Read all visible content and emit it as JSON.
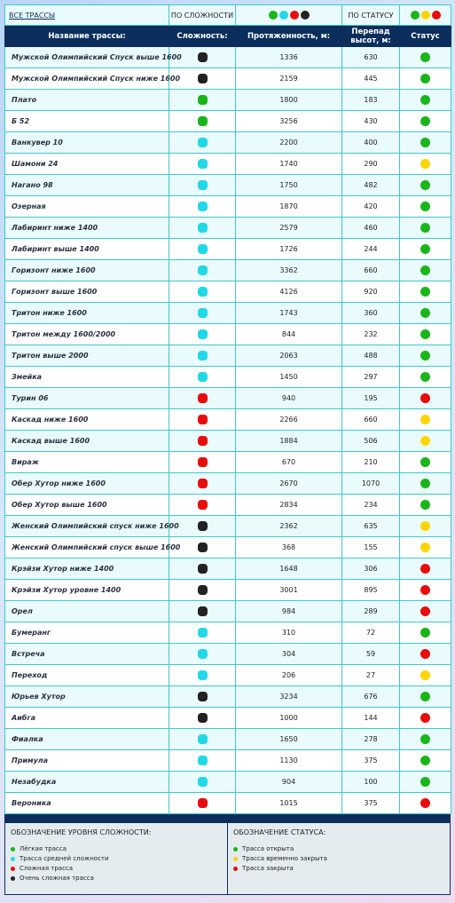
{
  "filters": {
    "all": "ВСЕ ТРАССЫ",
    "by_difficulty": "ПО СЛОЖНОСТИ",
    "by_status": "ПО СТАТУСУ"
  },
  "table": {
    "headers": [
      "Название трассы:",
      "Сложность:",
      "Протяженность, м:",
      "Перепад высот, м:",
      "Статус"
    ],
    "rows": [
      {
        "name": "Мужской Олимпийский Спуск выше 1600",
        "difficulty_color": "#222222",
        "length": 1336,
        "drop": 630,
        "status_color": "#19b519"
      },
      {
        "name": "Мужской Олимпийский Спуск ниже 1600",
        "difficulty_color": "#222222",
        "length": 2159,
        "drop": 445,
        "status_color": "#19b519"
      },
      {
        "name": "Плато",
        "difficulty_color": "#19b519",
        "length": 1800,
        "drop": 183,
        "status_color": "#19b519"
      },
      {
        "name": "Б 52",
        "difficulty_color": "#19b519",
        "length": 3256,
        "drop": 430,
        "status_color": "#19b519"
      },
      {
        "name": "Ванкувер 10",
        "difficulty_color": "#22d8e6",
        "length": 2200,
        "drop": 400,
        "status_color": "#19b519"
      },
      {
        "name": "Шамони 24",
        "difficulty_color": "#22d8e6",
        "length": 1740,
        "drop": 290,
        "status_color": "#ffd400"
      },
      {
        "name": "Нагано 98",
        "difficulty_color": "#22d8e6",
        "length": 1750,
        "drop": 482,
        "status_color": "#19b519"
      },
      {
        "name": "Озерная",
        "difficulty_color": "#22d8e6",
        "length": 1870,
        "drop": 420,
        "status_color": "#19b519"
      },
      {
        "name": "Лабиринт ниже 1400",
        "difficulty_color": "#22d8e6",
        "length": 2579,
        "drop": 460,
        "status_color": "#19b519"
      },
      {
        "name": "Лабиринт выше 1400",
        "difficulty_color": "#22d8e6",
        "length": 1726,
        "drop": 244,
        "status_color": "#19b519"
      },
      {
        "name": "Горизонт ниже 1600",
        "difficulty_color": "#22d8e6",
        "length": 3362,
        "drop": 660,
        "status_color": "#19b519"
      },
      {
        "name": "Горизонт выше 1600",
        "difficulty_color": "#22d8e6",
        "length": 4126,
        "drop": 920,
        "status_color": "#19b519"
      },
      {
        "name": "Тритон ниже 1600",
        "difficulty_color": "#22d8e6",
        "length": 1743,
        "drop": 360,
        "status_color": "#19b519"
      },
      {
        "name": "Тритон между 1600/2000",
        "difficulty_color": "#22d8e6",
        "length": 844,
        "drop": 232,
        "status_color": "#19b519"
      },
      {
        "name": "Тритон выше 2000",
        "difficulty_color": "#22d8e6",
        "length": 2063,
        "drop": 488,
        "status_color": "#19b519"
      },
      {
        "name": "Змейка",
        "difficulty_color": "#22d8e6",
        "length": 1450,
        "drop": 297,
        "status_color": "#19b519"
      },
      {
        "name": "Турин 06",
        "difficulty_color": "#e80c0c",
        "length": 940,
        "drop": 195,
        "status_color": "#e80c0c"
      },
      {
        "name": "Каскад ниже 1600",
        "difficulty_color": "#e80c0c",
        "length": 2266,
        "drop": 660,
        "status_color": "#ffd400"
      },
      {
        "name": "Каскад выше 1600",
        "difficulty_color": "#e80c0c",
        "length": 1884,
        "drop": 506,
        "status_color": "#ffd400"
      },
      {
        "name": "Вираж",
        "difficulty_color": "#e80c0c",
        "length": 670,
        "drop": 210,
        "status_color": "#19b519"
      },
      {
        "name": "Обер Хутор ниже 1600",
        "difficulty_color": "#e80c0c",
        "length": 2670,
        "drop": 1070,
        "status_color": "#19b519"
      },
      {
        "name": "Обер Хутор выше 1600",
        "difficulty_color": "#e80c0c",
        "length": 2834,
        "drop": 234,
        "status_color": "#19b519"
      },
      {
        "name": "Женский Олимпийский спуск ниже 1600",
        "difficulty_color": "#222222",
        "length": 2362,
        "drop": 635,
        "status_color": "#ffd400"
      },
      {
        "name": "Женский Олимпийский спуск выше 1600",
        "difficulty_color": "#222222",
        "length": 368,
        "drop": 155,
        "status_color": "#ffd400"
      },
      {
        "name": "Крэйзи Хутор ниже 1400",
        "difficulty_color": "#222222",
        "length": 1648,
        "drop": 306,
        "status_color": "#e80c0c"
      },
      {
        "name": "Крэйзи Хутор уровне 1400",
        "difficulty_color": "#222222",
        "length": 3001,
        "drop": 895,
        "status_color": "#e80c0c"
      },
      {
        "name": "Орел",
        "difficulty_color": "#222222",
        "length": 984,
        "drop": 289,
        "status_color": "#e80c0c"
      },
      {
        "name": "Бумеранг",
        "difficulty_color": "#22d8e6",
        "length": 310,
        "drop": 72,
        "status_color": "#19b519"
      },
      {
        "name": "Встреча",
        "difficulty_color": "#22d8e6",
        "length": 304,
        "drop": 59,
        "status_color": "#e80c0c"
      },
      {
        "name": "Переход",
        "difficulty_color": "#22d8e6",
        "length": 206,
        "drop": 27,
        "status_color": "#ffd400"
      },
      {
        "name": "Юрьев Хутор",
        "difficulty_color": "#222222",
        "length": 3234,
        "drop": 676,
        "status_color": "#19b519"
      },
      {
        "name": "Аибга",
        "difficulty_color": "#222222",
        "length": 1000,
        "drop": 144,
        "status_color": "#e80c0c"
      },
      {
        "name": "Фиалка",
        "difficulty_color": "#22d8e6",
        "length": 1650,
        "drop": 278,
        "status_color": "#19b519"
      },
      {
        "name": "Примула",
        "difficulty_color": "#22d8e6",
        "length": 1130,
        "drop": 375,
        "status_color": "#19b519"
      },
      {
        "name": "Незабудка",
        "difficulty_color": "#22d8e6",
        "length": 904,
        "drop": 100,
        "status_color": "#19b519"
      },
      {
        "name": "Вероника",
        "difficulty_color": "#e80c0c",
        "length": 1015,
        "drop": 375,
        "status_color": "#e80c0c"
      }
    ]
  },
  "legend": {
    "difficulty": {
      "title": "ОБОЗНАЧЕНИЕ УРОВНЯ СЛОЖНОСТИ:",
      "items": [
        {
          "label": "Лёгкая трасса",
          "color": "#19b519"
        },
        {
          "label": "Трасса средней сложности",
          "color": "#22d8e6"
        },
        {
          "label": "Сложная трасса",
          "color": "#e80c0c"
        },
        {
          "label": "Очень сложная трасса",
          "color": "#222222"
        }
      ]
    },
    "status": {
      "title": "ОБОЗНАЧЕНИЕ СТАТУСА:",
      "items": [
        {
          "label": "Трасса открыта",
          "color": "#19b519"
        },
        {
          "label": "Трасса временно закрыта",
          "color": "#ffd400"
        },
        {
          "label": "Трасса закрыта",
          "color": "#e80c0c"
        }
      ]
    }
  }
}
